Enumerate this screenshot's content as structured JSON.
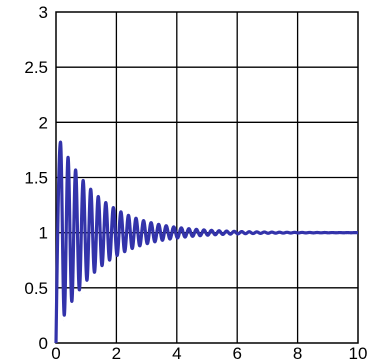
{
  "chart_data": {
    "type": "line",
    "title": "",
    "xlabel": "",
    "ylabel": "",
    "xlim": [
      0,
      10
    ],
    "ylim": [
      0,
      3
    ],
    "grid": true,
    "x_ticks": [
      "0",
      "2",
      "4",
      "6",
      "8",
      "10"
    ],
    "y_ticks": [
      "0",
      "0.5",
      "1",
      "1.5",
      "2",
      "2.5",
      "3"
    ],
    "series": [
      {
        "color": "#3333aa",
        "steady_state": 1.0,
        "initial_value": 0.0,
        "peak_value": 1.82,
        "peak_time": 0.15,
        "oscillation_period": 0.25,
        "settling_time": 6.0,
        "x": [
          0,
          0.05,
          0.1,
          0.15,
          0.25,
          0.4,
          0.55,
          0.7,
          0.85,
          1.0,
          1.15,
          1.3,
          1.45,
          1.6,
          1.75,
          1.9,
          2.05,
          2.2,
          2.35,
          2.5,
          2.65,
          2.8,
          2.95,
          3.1,
          3.4,
          3.7,
          4.0,
          4.5,
          5.0,
          6.0,
          10.0
        ],
        "y": [
          0.0,
          1.0,
          1.78,
          1.82,
          0.2,
          1.62,
          0.3,
          1.48,
          0.45,
          1.38,
          0.55,
          1.3,
          0.62,
          1.24,
          0.7,
          1.17,
          0.78,
          1.12,
          0.85,
          1.08,
          0.9,
          1.05,
          0.93,
          1.04,
          0.97,
          1.02,
          0.99,
          1.01,
          1.0,
          1.0,
          1.0
        ]
      }
    ]
  }
}
